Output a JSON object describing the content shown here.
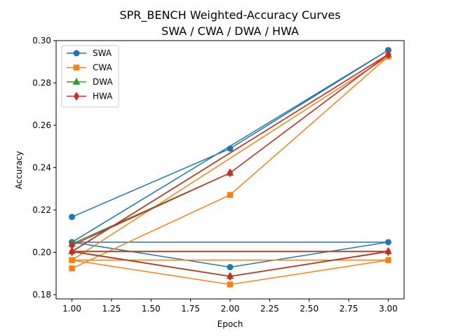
{
  "chart_data": {
    "type": "line",
    "title": "SPR_BENCH Weighted-Accuracy Curves",
    "subtitle": "SWA / CWA / DWA / HWA",
    "xlabel": "Epoch",
    "ylabel": "Accuracy",
    "xlim": [
      0.9,
      3.1
    ],
    "ylim": [
      0.178,
      0.3
    ],
    "xticks": [
      1.0,
      1.25,
      1.5,
      1.75,
      2.0,
      2.25,
      2.5,
      2.75,
      3.0
    ],
    "xtick_labels": [
      "1.00",
      "1.25",
      "1.50",
      "1.75",
      "2.00",
      "2.25",
      "2.50",
      "2.75",
      "3.00"
    ],
    "yticks": [
      0.18,
      0.2,
      0.22,
      0.24,
      0.26,
      0.28,
      0.3
    ],
    "ytick_labels": [
      "0.18",
      "0.20",
      "0.22",
      "0.24",
      "0.26",
      "0.28",
      "0.30"
    ],
    "grid": false,
    "legend_position": "top-left",
    "series": [
      {
        "name": "SWA",
        "color": "#1f77b4",
        "marker": "circle",
        "x": [
          1,
          2,
          3,
          1,
          2,
          3,
          1
        ],
        "y": [
          0.2167,
          0.249,
          0.2955,
          0.2048,
          0.193,
          0.2048,
          0.2048
        ]
      },
      {
        "name": "CWA",
        "color": "#ff7f0e",
        "marker": "square",
        "x": [
          1,
          2,
          3,
          1,
          2,
          3,
          1
        ],
        "y": [
          0.1924,
          0.2271,
          0.2925,
          0.1963,
          0.1848,
          0.1963,
          0.1963
        ]
      },
      {
        "name": "DWA",
        "color": "#2ca02c",
        "marker": "triangle",
        "x": [
          1,
          2,
          3,
          1,
          2,
          3,
          1
        ],
        "y": [
          0.204,
          0.2375,
          0.2935,
          0.2005,
          0.1887,
          0.2005,
          0.2005
        ]
      },
      {
        "name": "HWA",
        "color": "#d62728",
        "marker": "diamond",
        "x": [
          1,
          2,
          3,
          1,
          2,
          3,
          1
        ],
        "y": [
          0.2033,
          0.2375,
          0.2935,
          0.2003,
          0.1886,
          0.2003,
          0.2003
        ]
      }
    ]
  }
}
